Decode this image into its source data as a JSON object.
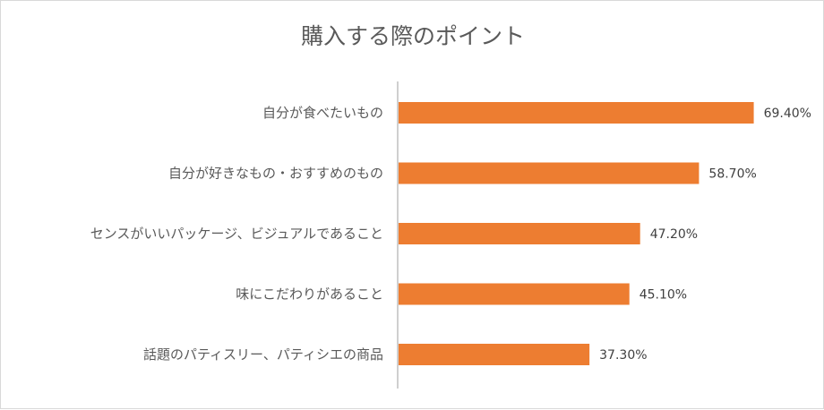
{
  "chart_data": {
    "type": "bar",
    "orientation": "horizontal",
    "title": "購入する際のポイント",
    "xlabel": "",
    "ylabel": "",
    "xlim": [
      0,
      70
    ],
    "grid": false,
    "legend": "none",
    "categories": [
      "自分が食べたいもの",
      "自分が好きなもの・おすすめのもの",
      "センスがいいパッケージ、ビジュアルであること",
      "味にこだわりがあること",
      "話題のパティスリー、パティシエの商品"
    ],
    "values": [
      69.4,
      58.7,
      47.2,
      45.1,
      37.3
    ],
    "value_labels": [
      "69.40%",
      "58.70%",
      "47.20%",
      "45.10%",
      "37.30%"
    ],
    "bar_color": "#ed7d31"
  }
}
